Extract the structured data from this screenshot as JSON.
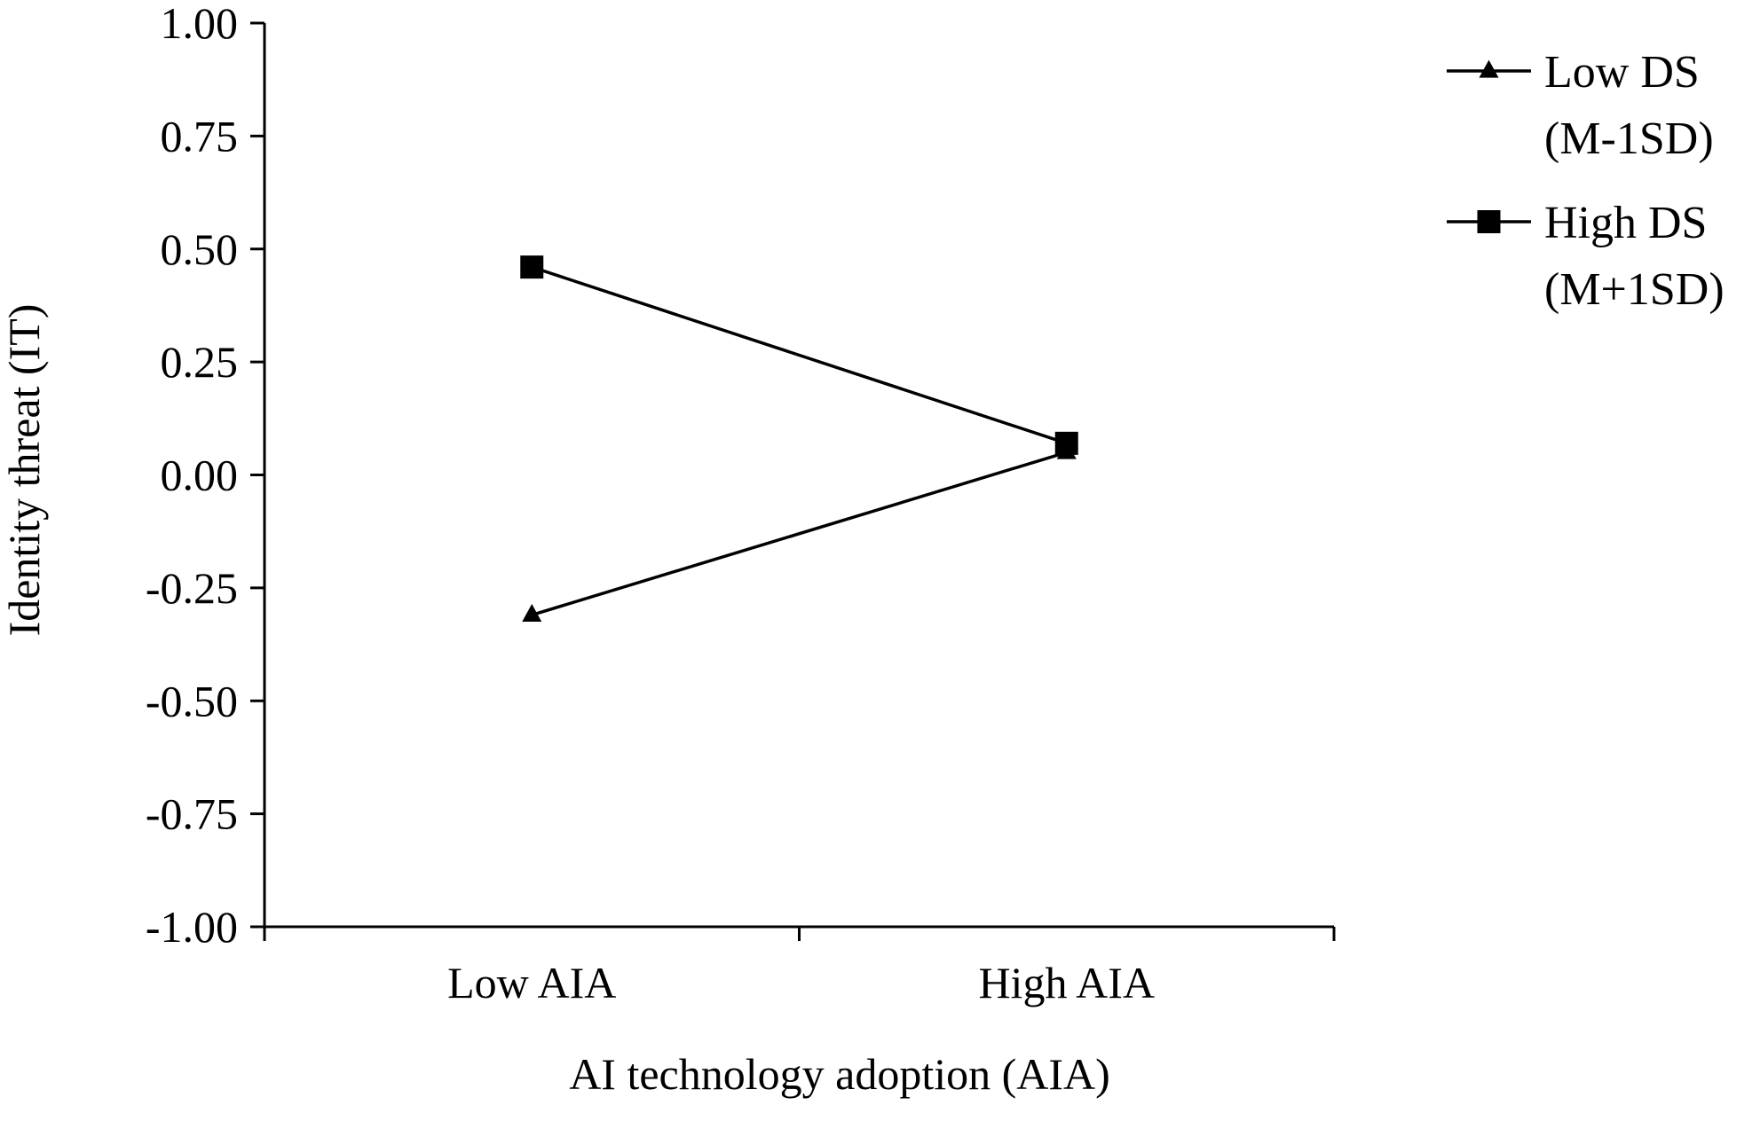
{
  "chart_data": {
    "type": "line",
    "title": "",
    "xlabel": "AI technology adoption (AIA)",
    "ylabel": "Identity threat (IT)",
    "categories": [
      "Low AIA",
      "High AIA"
    ],
    "ylim": [
      -1.0,
      1.0
    ],
    "yticks": [
      "1.00",
      "0.75",
      "0.50",
      "0.25",
      "0.00",
      "-0.25",
      "-0.50",
      "-0.75",
      "-1.00"
    ],
    "ytick_values": [
      1.0,
      0.75,
      0.5,
      0.25,
      0.0,
      -0.25,
      -0.5,
      -0.75,
      -1.0
    ],
    "grid": false,
    "legend_position": "top-right",
    "series": [
      {
        "name": "Low DS (M-1SD)",
        "legend_lines": [
          "Low DS",
          "(M-1SD)"
        ],
        "marker": "triangle",
        "color": "#000000",
        "values": [
          -0.31,
          0.05
        ]
      },
      {
        "name": "High DS (M+1SD)",
        "legend_lines": [
          "High DS",
          "(M+1SD)"
        ],
        "marker": "square",
        "color": "#000000",
        "values": [
          0.46,
          0.07
        ]
      }
    ]
  }
}
